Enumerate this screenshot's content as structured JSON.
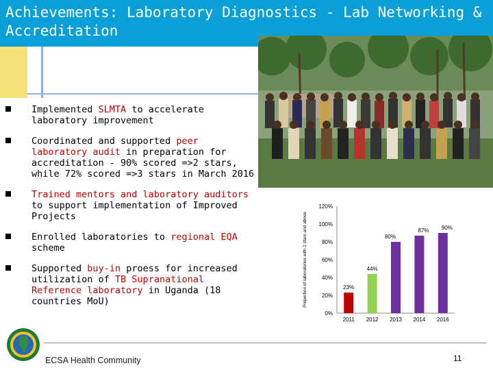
{
  "header": {
    "title": "Achievements: Laboratory Diagnostics - Lab Networking & Accreditation"
  },
  "bullets": [
    {
      "parts": [
        {
          "text": "Implemented ",
          "red": false
        },
        {
          "text": "SLMTA",
          "red": true
        },
        {
          "text": " to accelerate laboratory improvement",
          "red": false
        }
      ]
    },
    {
      "parts": [
        {
          "text": "Coordinated and supported ",
          "red": false
        },
        {
          "text": "peer laboratory audit",
          "red": true
        },
        {
          "text": " in preparation for accreditation - 90% scored =>2 stars, while 72% scored =>3 stars in March 2016",
          "red": false
        }
      ]
    },
    {
      "parts": [
        {
          "text": "Trained mentors and laboratory auditors",
          "red": true
        },
        {
          "text": " to support implementation of Improved Projects",
          "red": false
        }
      ]
    },
    {
      "parts": [
        {
          "text": "Enrolled laboratories to ",
          "red": false
        },
        {
          "text": "regional EQA",
          "red": true
        },
        {
          "text": " scheme",
          "red": false
        }
      ]
    },
    {
      "parts": [
        {
          "text": "Supported ",
          "red": false
        },
        {
          "text": "buy-in",
          "red": true
        },
        {
          "text": " proess for increased utilization of ",
          "red": false
        },
        {
          "text": "TB Supranational Reference laboratory",
          "red": true
        },
        {
          "text": " in Uganda (18 countries MoU)",
          "red": false
        }
      ]
    }
  ],
  "footer": {
    "organization": "ECSA Health Community",
    "page_number": "11"
  },
  "chart_data": {
    "type": "bar",
    "categories": [
      "2011",
      "2012",
      "2013",
      "2014",
      "2016"
    ],
    "values": [
      23,
      44,
      80,
      87,
      90
    ],
    "data_labels": [
      "23%",
      "44%",
      "80%",
      "87%",
      "90%"
    ],
    "ylabel": "Proportion of laboratories with 2 stars and above",
    "yticks": [
      "0%",
      "20%",
      "40%",
      "60%",
      "80%",
      "100%",
      "120%"
    ],
    "ylim": [
      0,
      120
    ],
    "bar_colors": [
      "#c00000",
      "#92d050",
      "#7030a0",
      "#7030a0",
      "#7030a0"
    ],
    "grid": false,
    "legend": "none"
  }
}
